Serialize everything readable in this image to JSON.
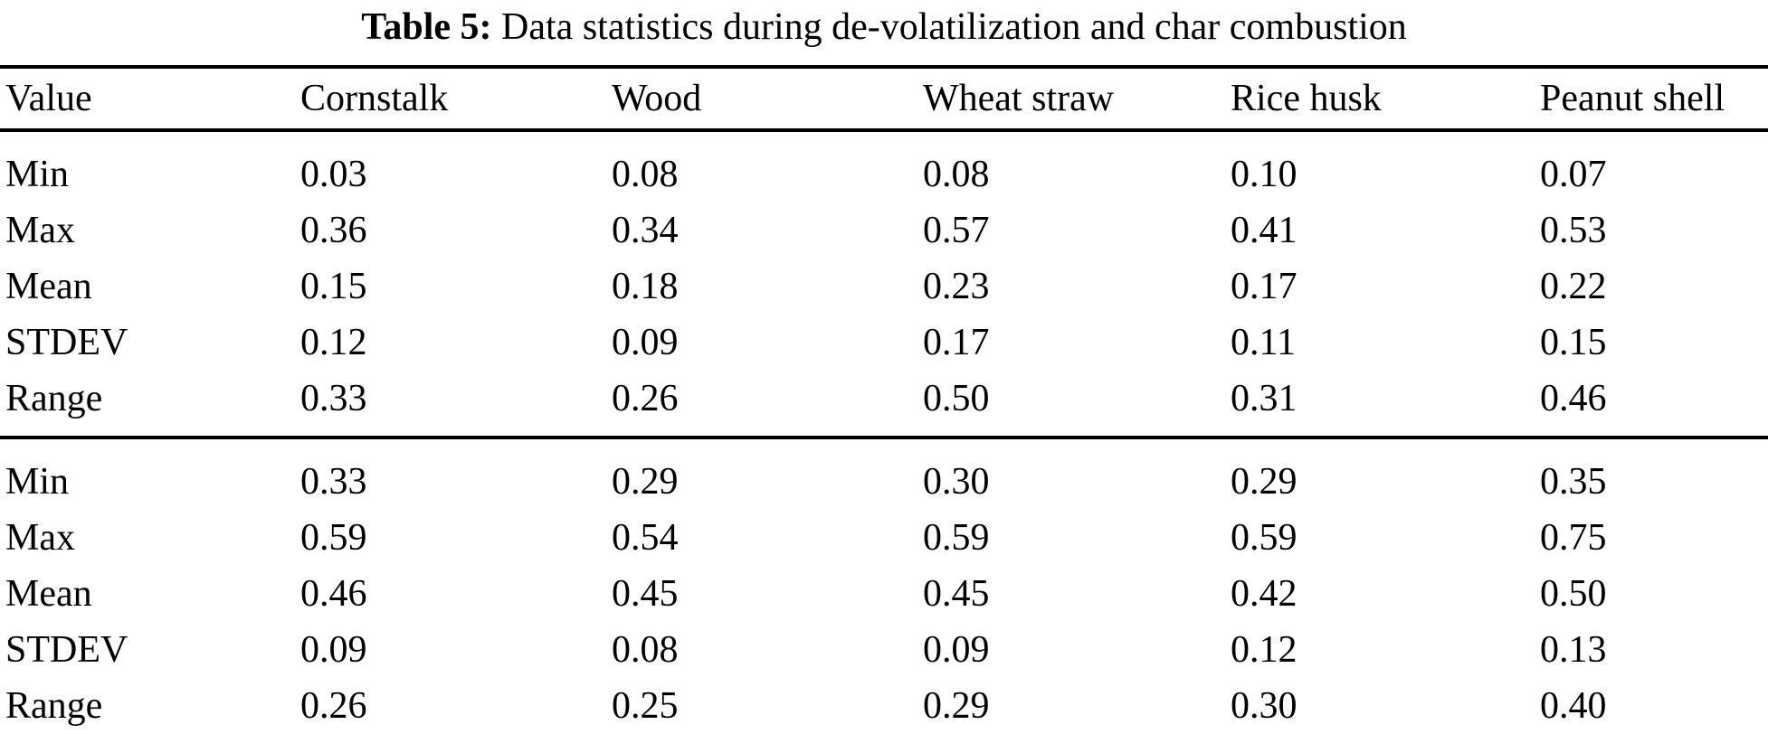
{
  "table": {
    "caption_label": "Table 5:",
    "caption_text": "Data statistics during de-volatilization and char combustion",
    "columns": [
      "Value",
      "Cornstalk",
      "Wood",
      "Wheat straw",
      "Rice husk",
      "Peanut shell"
    ],
    "sections": [
      {
        "name": "de-volatilization",
        "rows": [
          {
            "label": "Min",
            "values": [
              "0.03",
              "0.08",
              "0.08",
              "0.10",
              "0.07"
            ]
          },
          {
            "label": "Max",
            "values": [
              "0.36",
              "0.34",
              "0.57",
              "0.41",
              "0.53"
            ]
          },
          {
            "label": "Mean",
            "values": [
              "0.15",
              "0.18",
              "0.23",
              "0.17",
              "0.22"
            ]
          },
          {
            "label": "STDEV",
            "values": [
              "0.12",
              "0.09",
              "0.17",
              "0.11",
              "0.15"
            ]
          },
          {
            "label": "Range",
            "values": [
              "0.33",
              "0.26",
              "0.50",
              "0.31",
              "0.46"
            ]
          }
        ]
      },
      {
        "name": "char-combustion",
        "rows": [
          {
            "label": "Min",
            "values": [
              "0.33",
              "0.29",
              "0.30",
              "0.29",
              "0.35"
            ]
          },
          {
            "label": "Max",
            "values": [
              "0.59",
              "0.54",
              "0.59",
              "0.59",
              "0.75"
            ]
          },
          {
            "label": "Mean",
            "values": [
              "0.46",
              "0.45",
              "0.45",
              "0.42",
              "0.50"
            ]
          },
          {
            "label": "STDEV",
            "values": [
              "0.09",
              "0.08",
              "0.09",
              "0.12",
              "0.13"
            ]
          },
          {
            "label": "Range",
            "values": [
              "0.26",
              "0.25",
              "0.29",
              "0.30",
              "0.40"
            ]
          }
        ]
      }
    ]
  }
}
